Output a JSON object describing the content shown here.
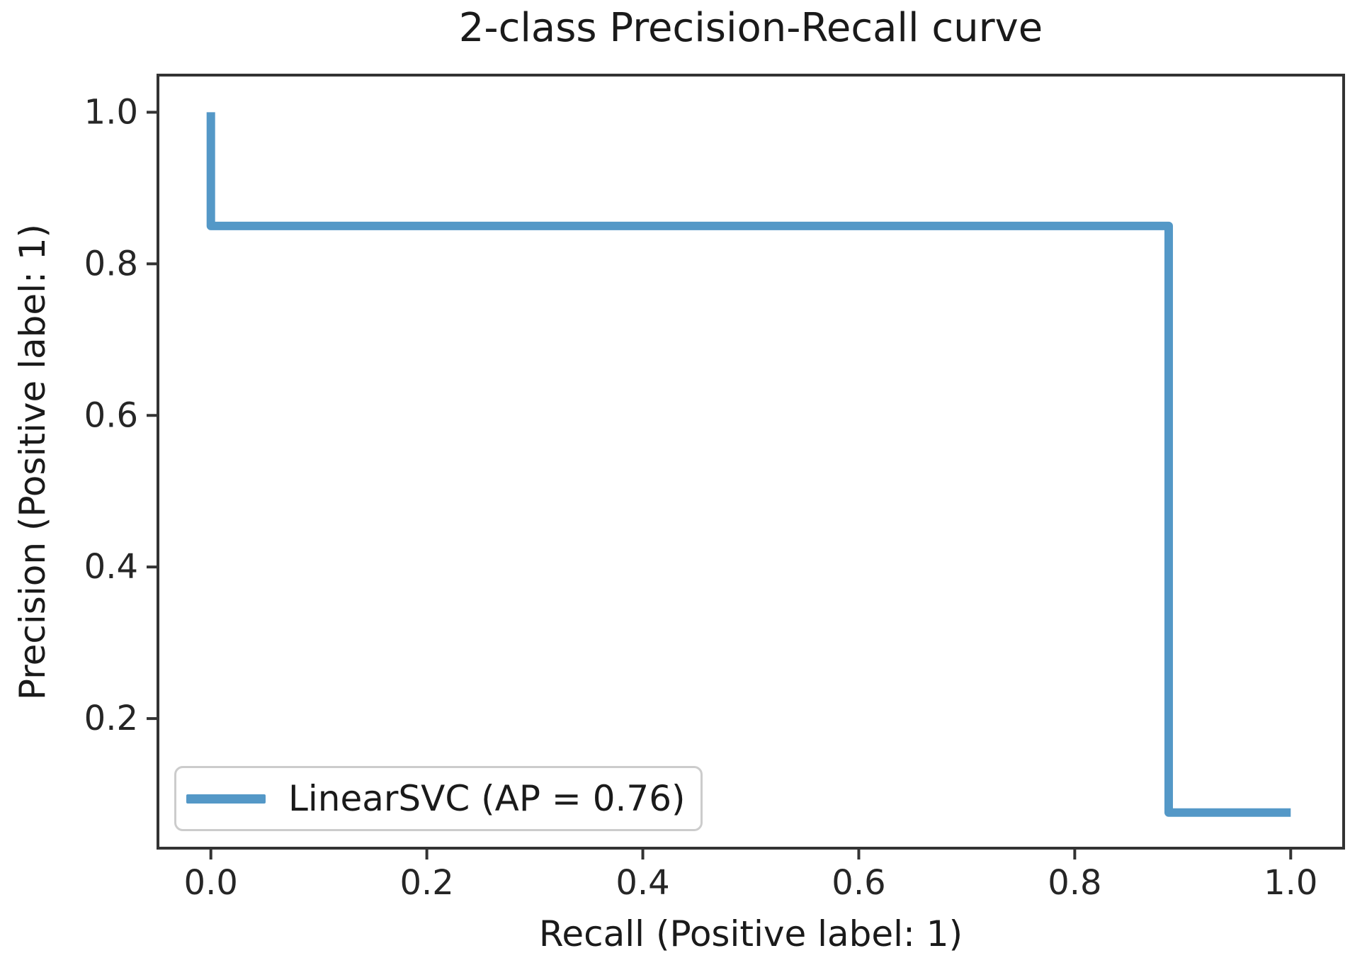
{
  "colors": {
    "line": "#5498c7",
    "spine": "#333333",
    "tick_text": "#262626",
    "label_text": "#1a1a1a",
    "legend_border": "#cccccc",
    "background": "#ffffff"
  },
  "chart_data": {
    "type": "line",
    "title": "2-class Precision-Recall curve",
    "xlabel": "Recall (Positive label: 1)",
    "ylabel": "Precision (Positive label: 1)",
    "xlim": [
      -0.049,
      1.049
    ],
    "ylim": [
      0.029,
      1.049
    ],
    "x_ticks": [
      0.0,
      0.2,
      0.4,
      0.6,
      0.8,
      1.0
    ],
    "y_ticks": [
      0.2,
      0.4,
      0.6,
      0.8,
      1.0
    ],
    "tick_decimals": 1,
    "grid": false,
    "legend": {
      "position": "lower left",
      "entries": [
        {
          "label": "LinearSVC (AP = 0.76)",
          "color": "#5498c7"
        }
      ]
    },
    "series": [
      {
        "name": "LinearSVC (AP = 0.76)",
        "ap": 0.76,
        "points": [
          [
            0.0,
            1.0
          ],
          [
            0.0,
            0.85
          ],
          [
            0.887,
            0.85
          ],
          [
            0.887,
            0.076
          ],
          [
            1.0,
            0.076
          ]
        ]
      }
    ]
  }
}
